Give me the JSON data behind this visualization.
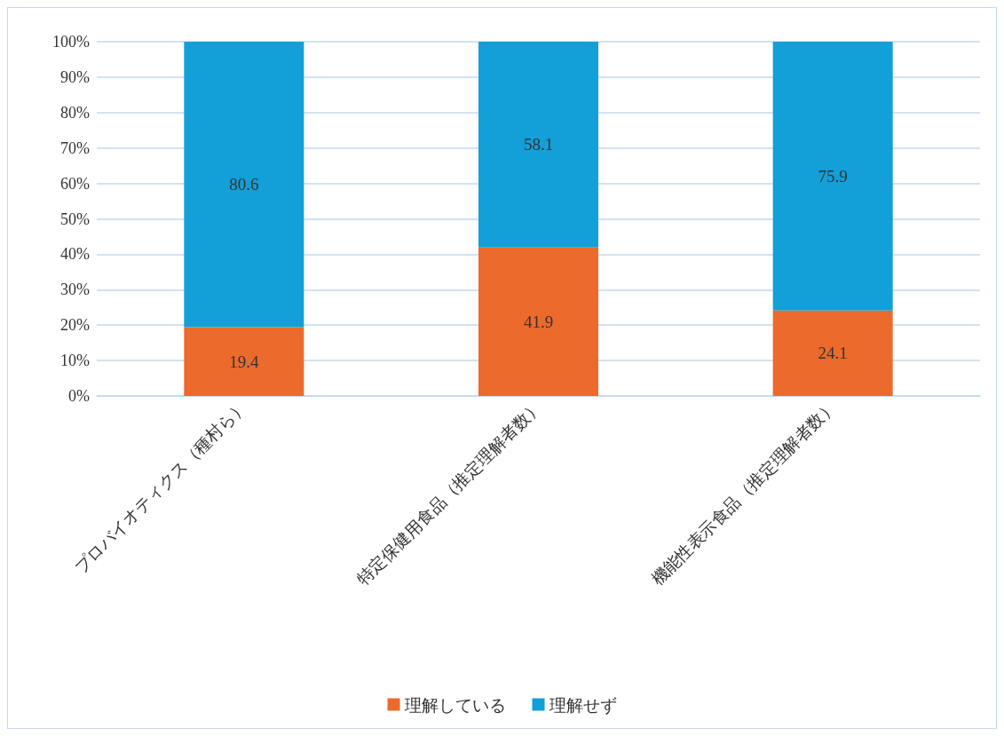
{
  "chart_data": {
    "type": "bar",
    "stacked": true,
    "categories": [
      "プロバイオティクス（種村ら）",
      "特定保健用食品（推定理解者数）",
      "機能性表示食品（推定理解者数）"
    ],
    "series": [
      {
        "name": "理解している",
        "color": "#ec6a2b",
        "values": [
          19.4,
          41.9,
          24.1
        ]
      },
      {
        "name": "理解せず",
        "color": "#139fd8",
        "values": [
          80.6,
          58.1,
          75.9
        ]
      }
    ],
    "ylim": [
      0,
      100
    ],
    "yticks": [
      {
        "value": 0,
        "label": "0%"
      },
      {
        "value": 10,
        "label": "10%"
      },
      {
        "value": 20,
        "label": "20%"
      },
      {
        "value": 30,
        "label": "30%"
      },
      {
        "value": 40,
        "label": "40%"
      },
      {
        "value": 50,
        "label": "50%"
      },
      {
        "value": 60,
        "label": "60%"
      },
      {
        "value": 70,
        "label": "70%"
      },
      {
        "value": 80,
        "label": "80%"
      },
      {
        "value": 90,
        "label": "90%"
      },
      {
        "value": 100,
        "label": "100%"
      }
    ],
    "grid": "y",
    "legend": "bottom",
    "data_labels": true
  }
}
